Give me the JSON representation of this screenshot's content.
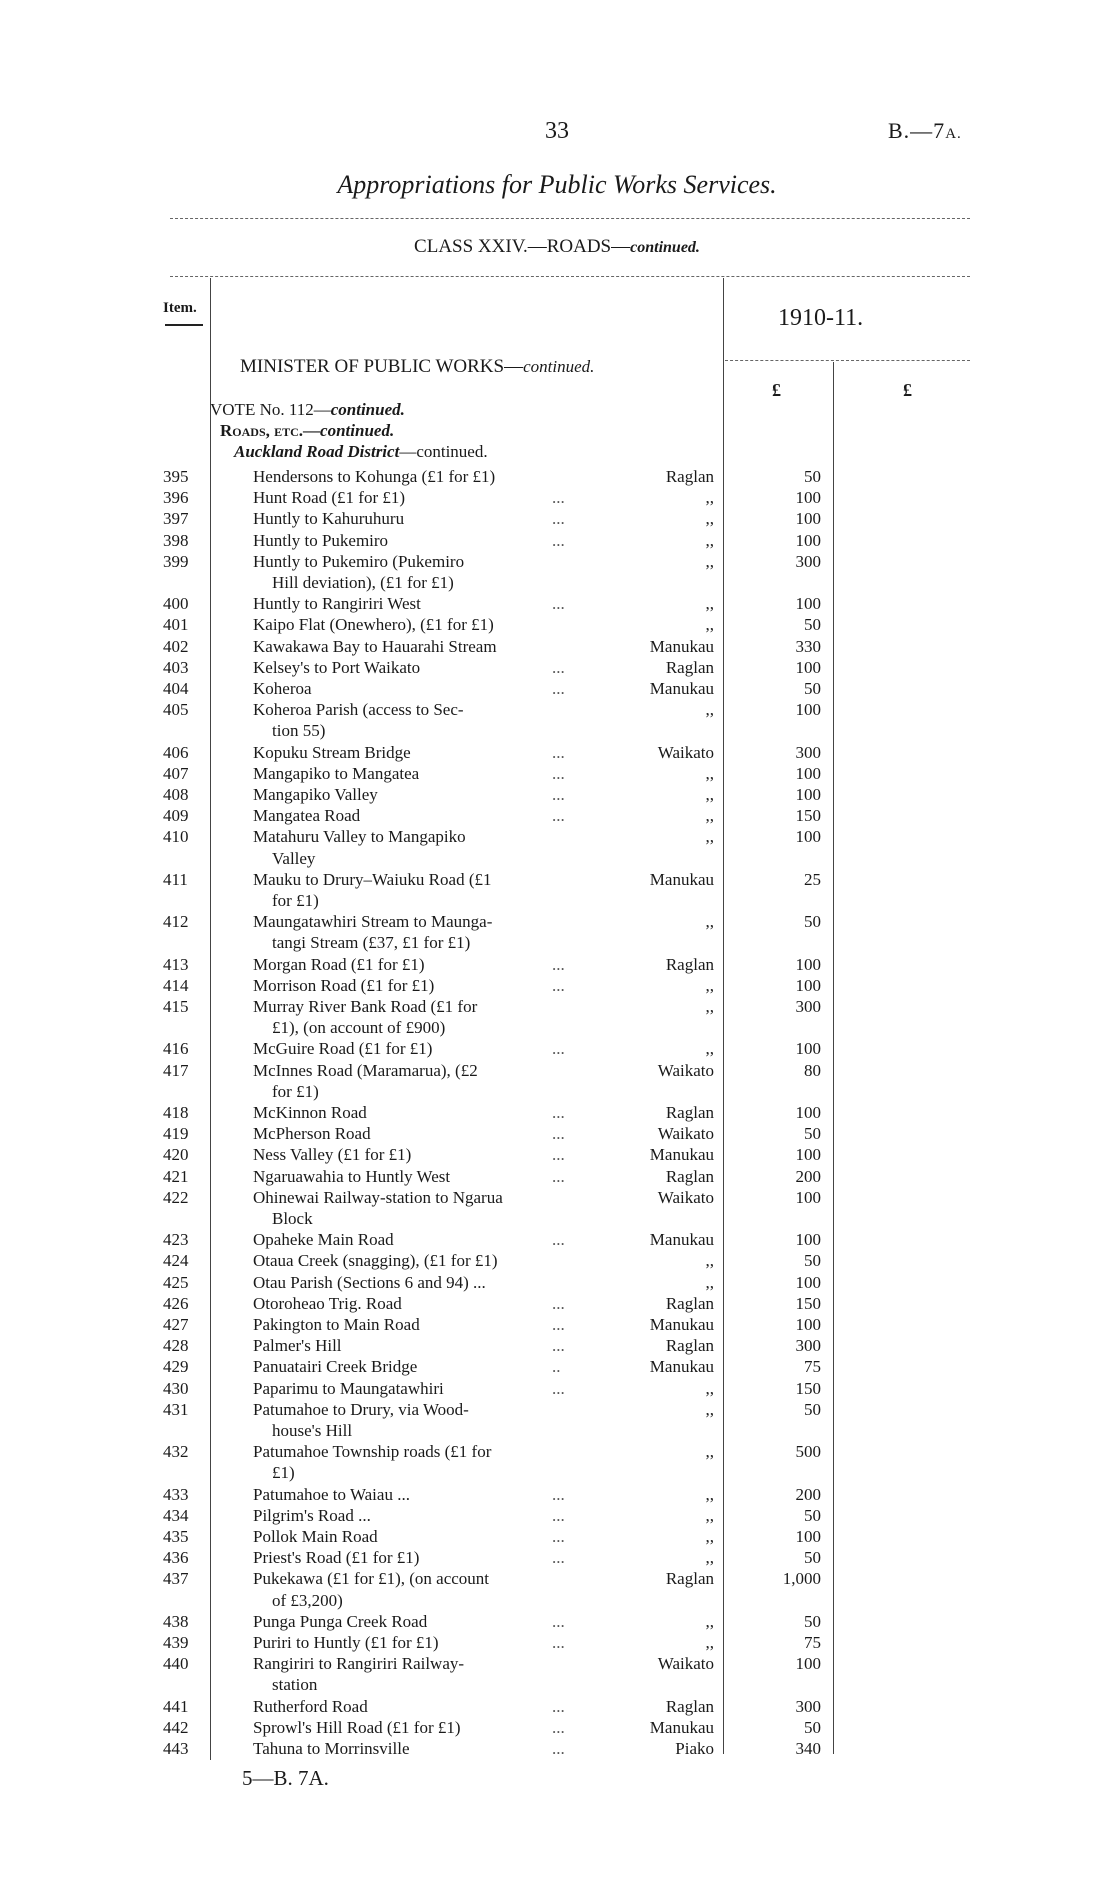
{
  "header": {
    "page_number": "33",
    "doc_ref": "B.—7",
    "doc_ref_suffix": "A.",
    "title": "Appropriations for Public Works Services.",
    "class_heading": "CLASS XXIV.—ROADS—",
    "class_heading_italic": "continued."
  },
  "table_header": {
    "item": "Item.",
    "year": "1910-11.",
    "currency_col1": "£",
    "currency_col2": "£"
  },
  "section": {
    "minister": "MINISTER OF PUBLIC WORKS—",
    "minister_italic": "continued.",
    "vote": "VOTE No. 112—",
    "vote_italic": "continued.",
    "roads": "Roads, etc.—",
    "roads_italic": "continued.",
    "district": "Auckland Road District",
    "district_suffix": "—continued."
  },
  "rows": [
    {
      "item": "395",
      "lines": [
        "Hendersons to Kohunga (£1 for £1)"
      ],
      "district": "Raglan",
      "amount": "50"
    },
    {
      "item": "396",
      "lines": [
        "Hunt Road (£1 for £1)"
      ],
      "dots": "...",
      "district": ",,",
      "amount": "100"
    },
    {
      "item": "397",
      "lines": [
        "Huntly to Kahuruhuru"
      ],
      "dots": "...",
      "district": ",,",
      "amount": "100"
    },
    {
      "item": "398",
      "lines": [
        "Huntly to Pukemiro"
      ],
      "dots": "...",
      "district": ",,",
      "amount": "100"
    },
    {
      "item": "399",
      "lines": [
        "Huntly to Pukemiro (Pukemiro",
        "Hill deviation), (£1 for £1)"
      ],
      "district": ",,",
      "amount": "300"
    },
    {
      "item": "400",
      "lines": [
        "Huntly to Rangiriri West"
      ],
      "dots": "...",
      "district": ",,",
      "amount": "100"
    },
    {
      "item": "401",
      "lines": [
        "Kaipo Flat (Onewhero), (£1 for £1)"
      ],
      "district": ",,",
      "amount": "50"
    },
    {
      "item": "402",
      "lines": [
        "Kawakawa Bay to Hauarahi Stream"
      ],
      "district": "Manukau",
      "amount": "330"
    },
    {
      "item": "403",
      "lines": [
        "Kelsey's to Port Waikato"
      ],
      "dots": "...",
      "district": "Raglan",
      "amount": "100"
    },
    {
      "item": "404",
      "lines": [
        "Koheroa"
      ],
      "dots": "...",
      "district": "Manukau",
      "amount": "50"
    },
    {
      "item": "405",
      "lines": [
        "Koheroa Parish (access to Sec-",
        "tion 55)"
      ],
      "district": ",,",
      "amount": "100"
    },
    {
      "item": "406",
      "lines": [
        "Kopuku Stream Bridge"
      ],
      "dots": "...",
      "district": "Waikato",
      "amount": "300"
    },
    {
      "item": "407",
      "lines": [
        "Mangapiko to Mangatea"
      ],
      "dots": "...",
      "district": ",,",
      "amount": "100"
    },
    {
      "item": "408",
      "lines": [
        "Mangapiko Valley"
      ],
      "dots": "...",
      "district": ",,",
      "amount": "100"
    },
    {
      "item": "409",
      "lines": [
        "Mangatea Road"
      ],
      "dots": "...",
      "district": ",,",
      "amount": "150"
    },
    {
      "item": "410",
      "lines": [
        "Matahuru Valley to Mangapiko",
        "Valley"
      ],
      "district": ",,",
      "amount": "100"
    },
    {
      "item": "411",
      "lines": [
        "Mauku to Drury–Waiuku Road (£1",
        "for £1)"
      ],
      "district": "Manukau",
      "amount": "25"
    },
    {
      "item": "412",
      "lines": [
        "Maungatawhiri Stream to Maunga-",
        "tangi Stream (£37, £1 for £1)"
      ],
      "district": ",,",
      "amount": "50"
    },
    {
      "item": "413",
      "lines": [
        "Morgan Road (£1 for £1)"
      ],
      "dots": "...",
      "district": "Raglan",
      "amount": "100"
    },
    {
      "item": "414",
      "lines": [
        "Morrison Road (£1 for £1)"
      ],
      "dots": "...",
      "district": ",,",
      "amount": "100"
    },
    {
      "item": "415",
      "lines": [
        "Murray River Bank Road (£1 for",
        "£1), (on account of £900)"
      ],
      "district": ",,",
      "amount": "300"
    },
    {
      "item": "416",
      "lines": [
        "McGuire Road (£1 for £1)"
      ],
      "dots": "...",
      "district": ",,",
      "amount": "100"
    },
    {
      "item": "417",
      "lines": [
        "McInnes Road (Maramarua), (£2",
        "for £1)"
      ],
      "district": "Waikato",
      "amount": "80"
    },
    {
      "item": "418",
      "lines": [
        "McKinnon Road"
      ],
      "dots": "...",
      "district": "Raglan",
      "amount": "100"
    },
    {
      "item": "419",
      "lines": [
        "McPherson Road"
      ],
      "dots": "...",
      "district": "Waikato",
      "amount": "50"
    },
    {
      "item": "420",
      "lines": [
        "Ness Valley (£1 for £1)"
      ],
      "dots": "...",
      "district": "Manukau",
      "amount": "100"
    },
    {
      "item": "421",
      "lines": [
        "Ngaruawahia to Huntly West"
      ],
      "dots": "...",
      "district": "Raglan",
      "amount": "200"
    },
    {
      "item": "422",
      "lines": [
        "Ohinewai Railway-station to Ngarua",
        "Block"
      ],
      "district": "Waikato",
      "amount": "100"
    },
    {
      "item": "423",
      "lines": [
        "Opaheke Main Road"
      ],
      "dots": "...",
      "district": "Manukau",
      "amount": "100"
    },
    {
      "item": "424",
      "lines": [
        "Otaua Creek (snagging), (£1 for £1)"
      ],
      "district": ",,",
      "amount": "50"
    },
    {
      "item": "425",
      "lines": [
        "Otau Parish (Sections 6 and 94) ..."
      ],
      "district": ",,",
      "amount": "100"
    },
    {
      "item": "426",
      "lines": [
        "Otoroheao Trig. Road"
      ],
      "dots": "...",
      "district": "Raglan",
      "amount": "150"
    },
    {
      "item": "427",
      "lines": [
        "Pakington to Main Road"
      ],
      "dots": "...",
      "district": "Manukau",
      "amount": "100"
    },
    {
      "item": "428",
      "lines": [
        "Palmer's Hill"
      ],
      "dots": "...",
      "district": "Raglan",
      "amount": "300"
    },
    {
      "item": "429",
      "lines": [
        "Panuatairi Creek Bridge"
      ],
      "dots": "..",
      "district": "Manukau",
      "amount": "75"
    },
    {
      "item": "430",
      "lines": [
        "Paparimu to Maungatawhiri"
      ],
      "dots": "...",
      "district": ",,",
      "amount": "150"
    },
    {
      "item": "431",
      "lines": [
        "Patumahoe to Drury, via Wood-",
        "house's Hill"
      ],
      "district": ",,",
      "amount": "50"
    },
    {
      "item": "432",
      "lines": [
        "Patumahoe Township roads (£1 for",
        "£1)"
      ],
      "district": ",,",
      "amount": "500"
    },
    {
      "item": "433",
      "lines": [
        "Patumahoe to Waiau ..."
      ],
      "dots": "...",
      "district": ",,",
      "amount": "200"
    },
    {
      "item": "434",
      "lines": [
        "Pilgrim's Road      ..."
      ],
      "dots": "...",
      "district": ",,",
      "amount": "50"
    },
    {
      "item": "435",
      "lines": [
        "Pollok Main Road"
      ],
      "dots": "...",
      "district": ",,",
      "amount": "100"
    },
    {
      "item": "436",
      "lines": [
        "Priest's Road (£1 for £1)"
      ],
      "dots": "...",
      "district": ",,",
      "amount": "50"
    },
    {
      "item": "437",
      "lines": [
        "Pukekawa (£1 for £1), (on account",
        "of £3,200)"
      ],
      "district": "Raglan",
      "amount": "1,000"
    },
    {
      "item": "438",
      "lines": [
        "Punga Punga Creek Road"
      ],
      "dots": "...",
      "district": ",,",
      "amount": "50"
    },
    {
      "item": "439",
      "lines": [
        "Puriri to Huntly (£1 for £1)"
      ],
      "dots": "...",
      "district": ",,",
      "amount": "75"
    },
    {
      "item": "440",
      "lines": [
        "Rangiriri to Rangiriri Railway-",
        "station"
      ],
      "district": "Waikato",
      "amount": "100"
    },
    {
      "item": "441",
      "lines": [
        "Rutherford Road"
      ],
      "dots": "...",
      "district": "Raglan",
      "amount": "300"
    },
    {
      "item": "442",
      "lines": [
        "Sprowl's Hill Road (£1 for £1)"
      ],
      "dots": "...",
      "district": "Manukau",
      "amount": "50"
    },
    {
      "item": "443",
      "lines": [
        "Tahuna to Morrinsville"
      ],
      "dots": "...",
      "district": "Piako",
      "amount": "340"
    }
  ],
  "footer": {
    "signature": "5—B. 7A."
  }
}
